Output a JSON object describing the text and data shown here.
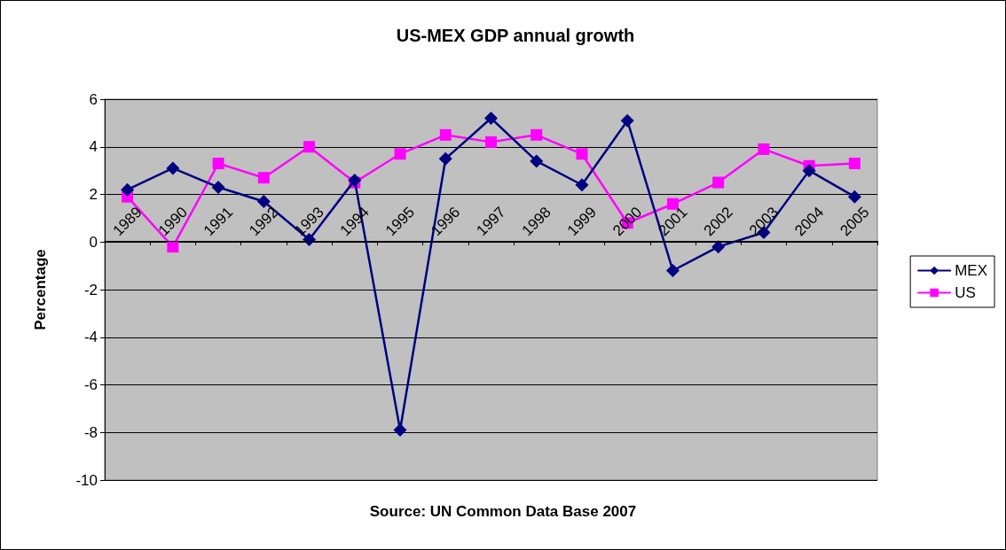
{
  "chart_data": {
    "type": "line",
    "title": "US-MEX GDP annual growth",
    "ylabel": "Percentage",
    "categories": [
      "1989",
      "1990",
      "1991",
      "1992",
      "1993",
      "1994",
      "1995",
      "1996",
      "1997",
      "1998",
      "1999",
      "2000",
      "2001",
      "2002",
      "2003",
      "2004",
      "2005"
    ],
    "series": [
      {
        "name": "MEX",
        "color": "#000080",
        "marker": "diamond",
        "values": [
          2.2,
          3.1,
          2.3,
          1.7,
          0.1,
          2.6,
          -7.9,
          3.5,
          5.2,
          3.4,
          2.4,
          5.1,
          -1.2,
          -0.2,
          0.4,
          3.0,
          1.9
        ]
      },
      {
        "name": "US",
        "color": "#ff00ff",
        "marker": "square",
        "values": [
          1.9,
          -0.2,
          3.3,
          2.7,
          4.0,
          2.5,
          3.7,
          4.5,
          4.2,
          4.5,
          3.7,
          0.8,
          1.6,
          2.5,
          3.9,
          3.2,
          3.3
        ]
      }
    ],
    "ylim": [
      -10,
      6
    ],
    "yticks": [
      -10,
      -8,
      -6,
      -4,
      -2,
      0,
      2,
      4,
      6
    ],
    "grid": "y",
    "legend": "right",
    "annotations": [
      "Source: UN Common Data Base 2007"
    ]
  }
}
